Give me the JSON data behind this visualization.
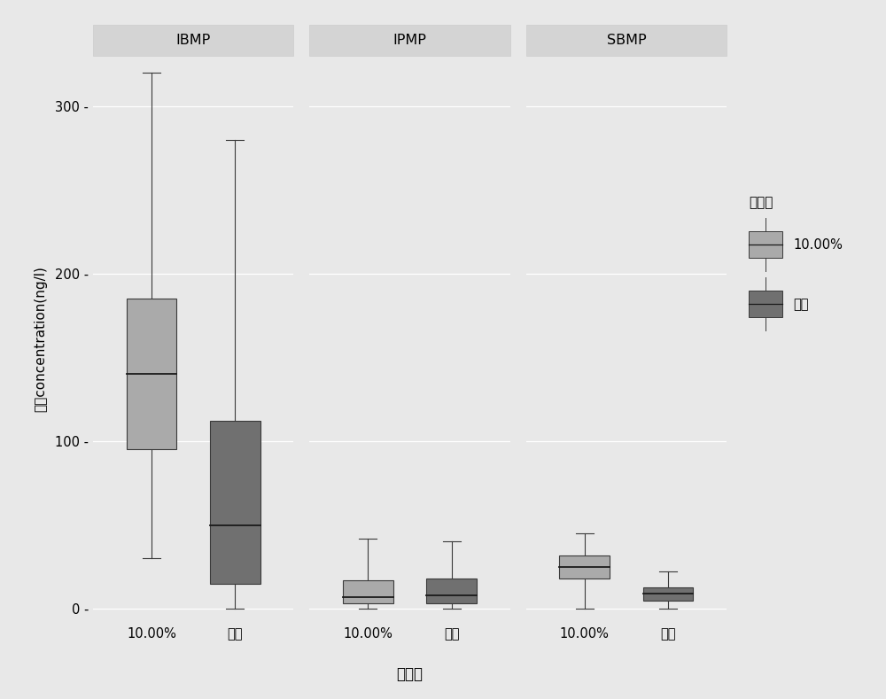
{
  "panels": [
    "IBMP",
    "IPMP",
    "SBMP"
  ],
  "categories": [
    "10.00%",
    "原酒"
  ],
  "xlabel": "酒精度",
  "ylabel": "浓度concentration(ng/l)",
  "legend_title": "酒精度",
  "legend_labels": [
    "10.00%",
    "原酒"
  ],
  "box_color_light": "#aaaaaa",
  "box_color_dark": "#707070",
  "background_color": "#e8e8e8",
  "panel_bg_color": "#e8e8e8",
  "strip_bg_color": "#d4d4d4",
  "grid_color": "#ffffff",
  "ylim": [
    -8,
    330
  ],
  "yticks": [
    0,
    100,
    200,
    300
  ],
  "ytick_labels": [
    "0 -",
    "100 -",
    "200 -",
    "300 -"
  ],
  "boxplot_data": {
    "IBMP": {
      "10.00%": {
        "whislo": 30,
        "q1": 95,
        "med": 140,
        "q3": 185,
        "whishi": 320
      },
      "原酒": {
        "whislo": 0,
        "q1": 15,
        "med": 50,
        "q3": 112,
        "whishi": 280
      }
    },
    "IPMP": {
      "10.00%": {
        "whislo": 0,
        "q1": 3,
        "med": 7,
        "q3": 17,
        "whishi": 42
      },
      "原酒": {
        "whislo": 0,
        "q1": 3,
        "med": 8,
        "q3": 18,
        "whishi": 40
      }
    },
    "SBMP": {
      "10.00%": {
        "whislo": 0,
        "q1": 18,
        "med": 25,
        "q3": 32,
        "whishi": 45
      },
      "原酒": {
        "whislo": 0,
        "q1": 5,
        "med": 9,
        "q3": 13,
        "whishi": 22
      }
    }
  }
}
